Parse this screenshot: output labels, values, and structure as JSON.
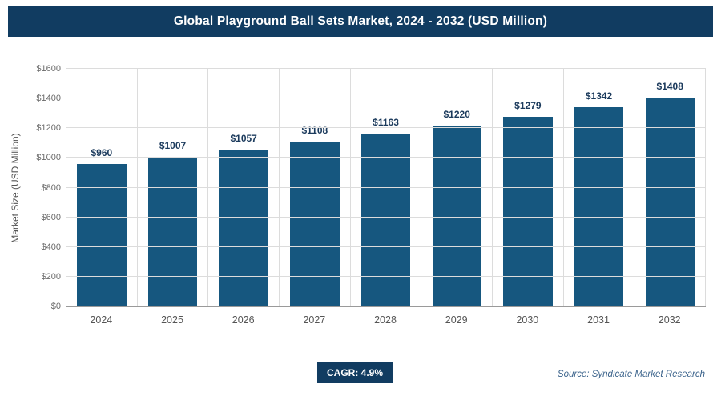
{
  "header": {
    "title": "Global Playground Ball Sets Market, 2024 - 2032 (USD Million)"
  },
  "chart_data": {
    "type": "bar",
    "title": "Global Playground Ball Sets Market, 2024 - 2032 (USD Million)",
    "categories": [
      "2024",
      "2025",
      "2026",
      "2027",
      "2028",
      "2029",
      "2030",
      "2031",
      "2032"
    ],
    "values": [
      960,
      1007,
      1057,
      1108,
      1163,
      1220,
      1279,
      1342,
      1408
    ],
    "value_labels": [
      "$960",
      "$1007",
      "$1057",
      "$1108",
      "$1163",
      "$1220",
      "$1279",
      "$1342",
      "$1408"
    ],
    "xlabel": "",
    "ylabel": "Market Size (USD Million)",
    "ylim": [
      0,
      1600
    ],
    "ytick_step": 200,
    "ytick_labels": [
      "$0",
      "$200",
      "$400",
      "$600",
      "$800",
      "$1000",
      "$1200",
      "$1400",
      "$1600"
    ],
    "grid": true,
    "legend_position": "none",
    "bar_color": "#16577f"
  },
  "footer": {
    "cagr_label": "CAGR: 4.9%",
    "source": "Source: Syndicate Market Research"
  },
  "colors": {
    "header_bg": "#113c61",
    "bar": "#16577f",
    "value_label": "#1b3a5c",
    "gridline": "#dcdcdc",
    "axis": "#9a9a9a",
    "badge_bg": "#113c61",
    "source_text": "#3c648c"
  }
}
